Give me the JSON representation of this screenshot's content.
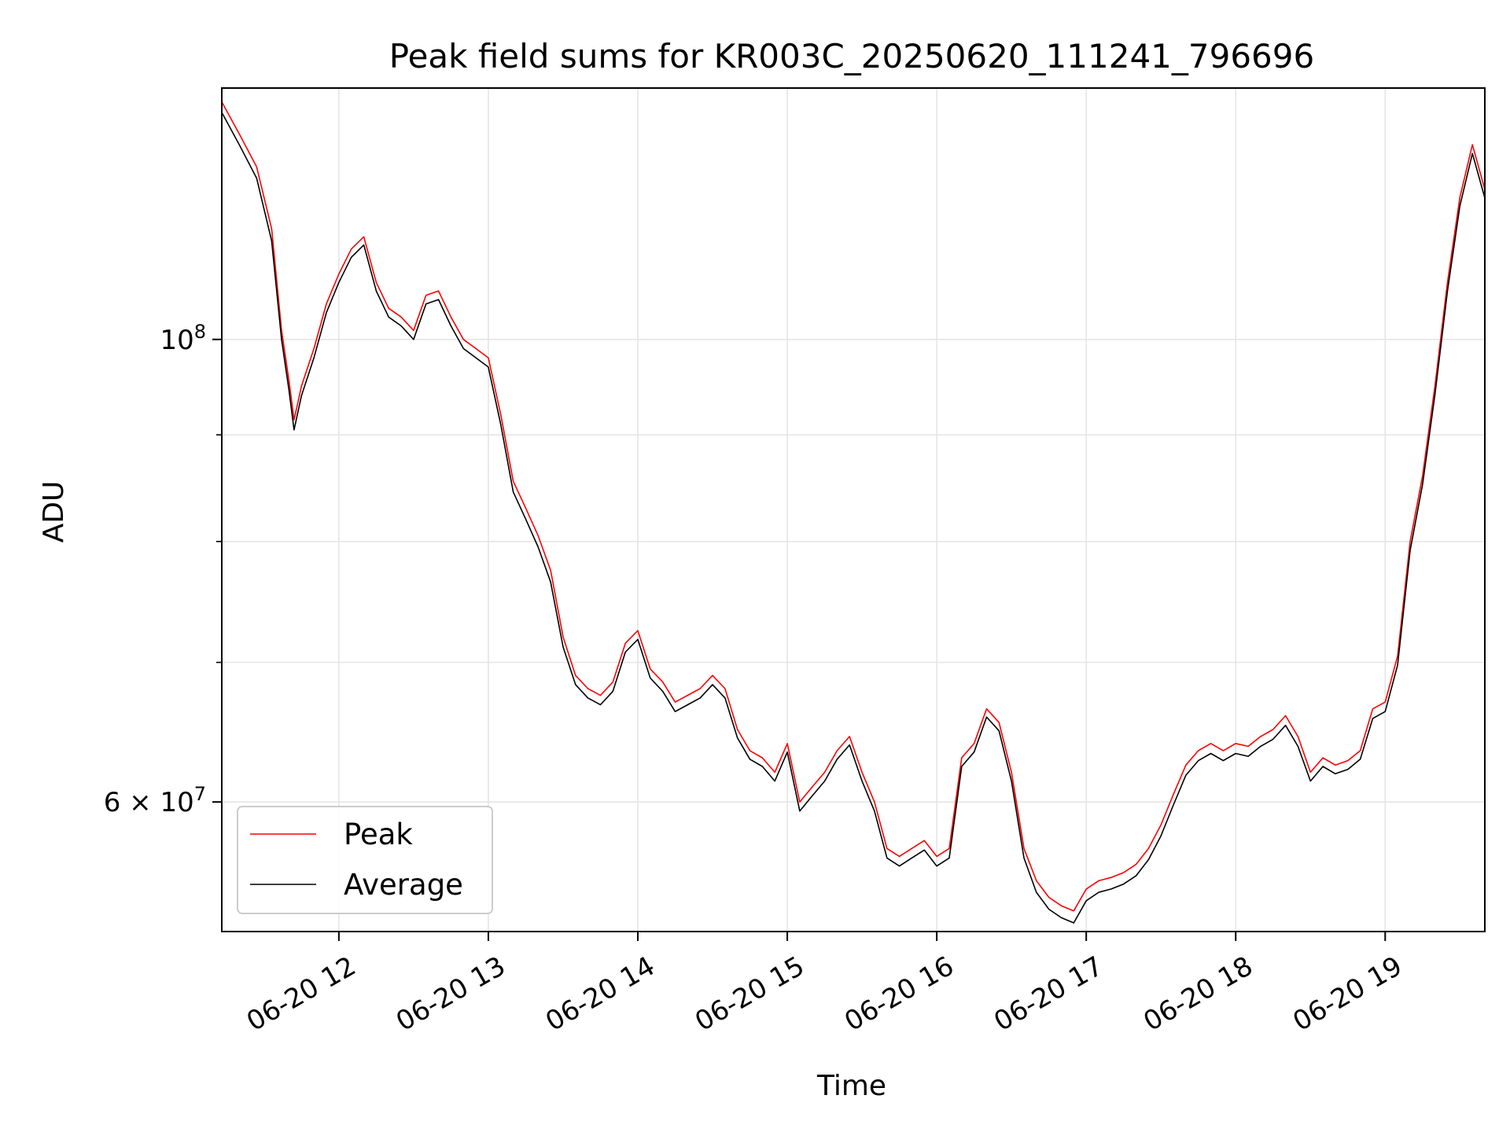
{
  "chart_data": {
    "type": "line",
    "title": "Peak field sums for KR003C_20250620_111241_796696",
    "xlabel": "Time",
    "ylabel": "ADU",
    "y_scale": "log",
    "xlim": [
      "2025-06-20 11:13",
      "2025-06-20 19:40"
    ],
    "ylim": [
      52000000,
      132000000
    ],
    "x_ticks": [
      "06-20 12",
      "06-20 13",
      "06-20 14",
      "06-20 15",
      "06-20 16",
      "06-20 17",
      "06-20 18",
      "06-20 19"
    ],
    "y_tick_labels": [
      {
        "value": 100000000,
        "base": "10",
        "exp": "8",
        "prefix": ""
      },
      {
        "value": 60000000,
        "base": "10",
        "exp": "7",
        "prefix": "6 × "
      }
    ],
    "y_minor_ticks": [
      70000000,
      80000000,
      90000000
    ],
    "grid": true,
    "legend_position": "lower-left",
    "colors": {
      "peak": "#ff0000",
      "average": "#000000"
    },
    "series": [
      {
        "name": "Peak",
        "x": [
          "11:13",
          "11:20",
          "11:27",
          "11:33",
          "11:37",
          "11:40",
          "11:42",
          "11:45",
          "11:50",
          "11:55",
          "12:00",
          "12:05",
          "12:10",
          "12:15",
          "12:20",
          "12:25",
          "12:30",
          "12:35",
          "12:40",
          "12:45",
          "12:50",
          "12:55",
          "13:00",
          "13:05",
          "13:10",
          "13:15",
          "13:20",
          "13:25",
          "13:30",
          "13:35",
          "13:40",
          "13:45",
          "13:50",
          "13:55",
          "14:00",
          "14:05",
          "14:10",
          "14:15",
          "14:20",
          "14:25",
          "14:30",
          "14:35",
          "14:40",
          "14:45",
          "14:50",
          "14:55",
          "15:00",
          "15:05",
          "15:10",
          "15:15",
          "15:20",
          "15:25",
          "15:30",
          "15:35",
          "15:40",
          "15:45",
          "15:50",
          "15:55",
          "16:00",
          "16:05",
          "16:10",
          "16:15",
          "16:20",
          "16:25",
          "16:30",
          "16:35",
          "16:40",
          "16:45",
          "16:50",
          "16:55",
          "17:00",
          "17:05",
          "17:10",
          "17:15",
          "17:20",
          "17:25",
          "17:30",
          "17:35",
          "17:40",
          "17:45",
          "17:50",
          "17:55",
          "18:00",
          "18:05",
          "18:10",
          "18:15",
          "18:20",
          "18:25",
          "18:30",
          "18:35",
          "18:40",
          "18:45",
          "18:50",
          "18:55",
          "19:00",
          "19:05",
          "19:10",
          "19:15",
          "19:20",
          "19:25",
          "19:30",
          "19:35",
          "19:40"
        ],
        "values": [
          130.0,
          125.5,
          121.0,
          113.0,
          101.0,
          95.5,
          91.5,
          95.0,
          99.0,
          104.0,
          107.5,
          110.5,
          112.0,
          106.5,
          103.5,
          102.5,
          101.0,
          105.0,
          105.5,
          102.5,
          100.0,
          99.0,
          98.0,
          92.0,
          85.5,
          83.0,
          80.5,
          77.5,
          72.0,
          69.0,
          68.0,
          67.5,
          68.5,
          71.5,
          72.5,
          69.5,
          68.5,
          67.0,
          67.5,
          68.0,
          69.0,
          68.0,
          65.0,
          63.5,
          63.0,
          62.0,
          64.0,
          60.0,
          61.0,
          62.0,
          63.5,
          64.5,
          62.0,
          60.0,
          57.0,
          56.5,
          57.0,
          57.5,
          56.5,
          57.0,
          63.0,
          64.0,
          66.5,
          65.5,
          62.0,
          57.0,
          55.0,
          54.0,
          53.5,
          53.2,
          54.5,
          55.0,
          55.2,
          55.5,
          56.0,
          57.0,
          58.5,
          60.5,
          62.5,
          63.5,
          64.0,
          63.5,
          64.0,
          63.8,
          64.5,
          65.0,
          66.0,
          64.5,
          62.0,
          63.0,
          62.5,
          62.8,
          63.5,
          66.5,
          67.0,
          70.5,
          80.0,
          86.0,
          95.0,
          106.5,
          117.0,
          124.0,
          118.0
        ]
      },
      {
        "name": "Average",
        "x": [
          "11:13",
          "11:20",
          "11:27",
          "11:33",
          "11:37",
          "11:40",
          "11:42",
          "11:45",
          "11:50",
          "11:55",
          "12:00",
          "12:05",
          "12:10",
          "12:15",
          "12:20",
          "12:25",
          "12:30",
          "12:35",
          "12:40",
          "12:45",
          "12:50",
          "12:55",
          "13:00",
          "13:05",
          "13:10",
          "13:15",
          "13:20",
          "13:25",
          "13:30",
          "13:35",
          "13:40",
          "13:45",
          "13:50",
          "13:55",
          "14:00",
          "14:05",
          "14:10",
          "14:15",
          "14:20",
          "14:25",
          "14:30",
          "14:35",
          "14:40",
          "14:45",
          "14:50",
          "14:55",
          "15:00",
          "15:05",
          "15:10",
          "15:15",
          "15:20",
          "15:25",
          "15:30",
          "15:35",
          "15:40",
          "15:45",
          "15:50",
          "15:55",
          "16:00",
          "16:05",
          "16:10",
          "16:15",
          "16:20",
          "16:25",
          "16:30",
          "16:35",
          "16:40",
          "16:45",
          "16:50",
          "16:55",
          "17:00",
          "17:05",
          "17:10",
          "17:15",
          "17:20",
          "17:25",
          "17:30",
          "17:35",
          "17:40",
          "17:45",
          "17:50",
          "17:55",
          "18:00",
          "18:05",
          "18:10",
          "18:15",
          "18:20",
          "18:25",
          "18:30",
          "18:35",
          "18:40",
          "18:45",
          "18:50",
          "18:55",
          "19:00",
          "19:05",
          "19:10",
          "19:15",
          "19:20",
          "19:25",
          "19:30",
          "19:35",
          "19:40"
        ],
        "values": [
          128.5,
          124.0,
          119.5,
          111.5,
          100.0,
          94.5,
          90.5,
          94.0,
          98.0,
          103.0,
          106.5,
          109.5,
          111.0,
          105.5,
          102.5,
          101.5,
          100.0,
          104.0,
          104.5,
          101.5,
          99.0,
          98.0,
          97.0,
          91.0,
          84.5,
          82.0,
          79.5,
          76.5,
          71.2,
          68.3,
          67.3,
          66.8,
          67.8,
          70.8,
          71.8,
          68.8,
          67.8,
          66.3,
          66.8,
          67.3,
          68.3,
          67.3,
          64.4,
          62.9,
          62.4,
          61.4,
          63.4,
          59.4,
          60.4,
          61.4,
          62.9,
          63.9,
          61.4,
          59.4,
          56.4,
          55.9,
          56.4,
          56.9,
          55.9,
          56.4,
          62.4,
          63.4,
          65.9,
          64.9,
          61.4,
          56.4,
          54.3,
          53.3,
          52.8,
          52.5,
          53.8,
          54.3,
          54.5,
          54.8,
          55.3,
          56.3,
          57.8,
          59.8,
          61.8,
          62.8,
          63.3,
          62.8,
          63.3,
          63.1,
          63.8,
          64.3,
          65.3,
          63.8,
          61.4,
          62.4,
          61.9,
          62.2,
          62.9,
          65.8,
          66.3,
          69.8,
          79.2,
          85.2,
          94.1,
          105.5,
          115.9,
          122.8,
          116.9
        ]
      }
    ]
  }
}
